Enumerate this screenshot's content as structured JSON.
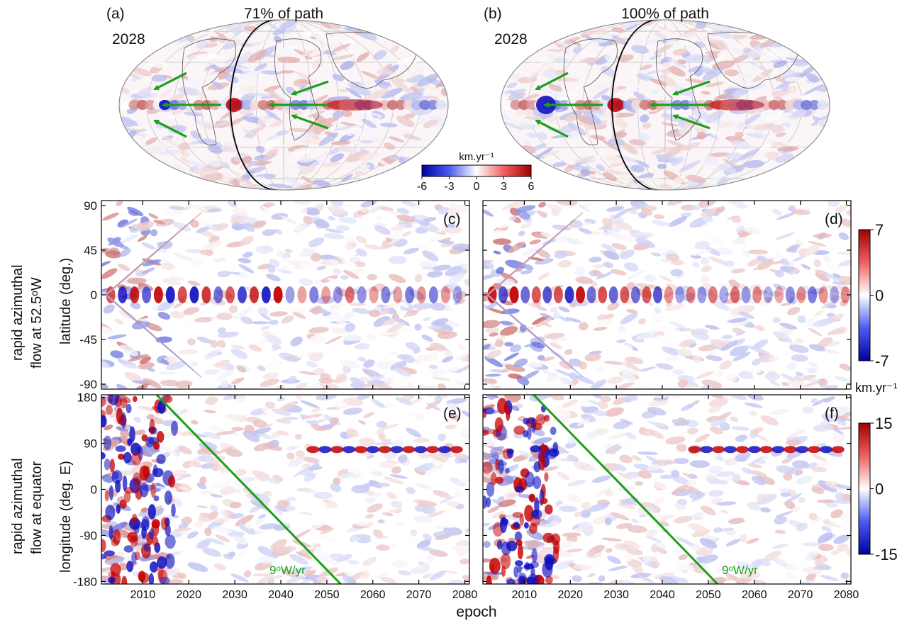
{
  "figure": {
    "xlabel": "epoch",
    "colorbar_units": "km.yr⁻¹",
    "maps": [
      {
        "panel": "(a)",
        "title": "71% of path",
        "year": "2028"
      },
      {
        "panel": "(b)",
        "title": "100% of path",
        "year": "2028"
      }
    ],
    "map_colorbar": {
      "units": "km.yr⁻¹",
      "ticks": [
        "-6",
        "-3",
        "0",
        "3",
        "6"
      ]
    },
    "row_labels": {
      "top": [
        "rapid azimuthal",
        "flow at 52.5ᵒW"
      ],
      "bottom": [
        "rapid azimuthal",
        "flow at equator"
      ]
    },
    "annotations": {
      "drift_left": "9ᵒW/yr",
      "drift_right": "9ᵒW/yr"
    },
    "colors": {
      "positive": "#c40000",
      "negative": "#1010c0",
      "arrow": "#1aa01a"
    }
  },
  "chart_data": [
    {
      "type": "heatmap",
      "panel": "(c)",
      "xlabel": "",
      "ylabel": "latitude (deg.)",
      "xlim": [
        2001,
        2081
      ],
      "ylim": [
        -95,
        95
      ],
      "xticks": [
        "2010",
        "2020",
        "2030",
        "2040",
        "2050",
        "2060",
        "2070",
        "2080"
      ],
      "yticks": [
        "90",
        "45",
        "0",
        "-45",
        "-90"
      ],
      "colorbar": {
        "range": [
          -7,
          7
        ],
        "ticks": [
          "7",
          "0",
          "-7"
        ],
        "units": "km.yr⁻¹"
      },
      "equatorial_signal": "alternating positive/negative blobs along latitude 0, strongest 2005-2040"
    },
    {
      "type": "heatmap",
      "panel": "(d)",
      "xlabel": "",
      "ylabel": "latitude (deg.)",
      "xlim": [
        2001,
        2081
      ],
      "ylim": [
        -95,
        95
      ],
      "xticks": [
        "2010",
        "2020",
        "2030",
        "2040",
        "2050",
        "2060",
        "2070",
        "2080"
      ],
      "yticks": [
        "90",
        "45",
        "0",
        "-45",
        "-90"
      ],
      "colorbar": {
        "range": [
          -7,
          7
        ],
        "ticks": [
          "7",
          "0",
          "-7"
        ],
        "units": "km.yr⁻¹"
      }
    },
    {
      "type": "heatmap",
      "panel": "(e)",
      "xlabel": "epoch",
      "ylabel": "longitude (deg. E)",
      "xlim": [
        2001,
        2081
      ],
      "ylim": [
        -185,
        185
      ],
      "xticks": [
        "2010",
        "2020",
        "2030",
        "2040",
        "2050",
        "2060",
        "2070",
        "2080"
      ],
      "yticks": [
        "180",
        "90",
        "0",
        "-90",
        "-180"
      ],
      "colorbar": {
        "range": [
          -15,
          15
        ],
        "ticks": [
          "15",
          "0",
          "-15"
        ],
        "units": "km.yr⁻¹"
      },
      "drift_line": {
        "label": "9ᵒW/yr",
        "from": [
          2013,
          185
        ],
        "to": [
          2053,
          -185
        ]
      }
    },
    {
      "type": "heatmap",
      "panel": "(f)",
      "xlabel": "epoch",
      "ylabel": "longitude (deg. E)",
      "xlim": [
        2001,
        2081
      ],
      "ylim": [
        -185,
        185
      ],
      "xticks": [
        "2010",
        "2020",
        "2030",
        "2040",
        "2050",
        "2060",
        "2070",
        "2080"
      ],
      "yticks": [
        "180",
        "90",
        "0",
        "-90",
        "-180"
      ],
      "colorbar": {
        "range": [
          -15,
          15
        ],
        "ticks": [
          "15",
          "0",
          "-15"
        ],
        "units": "km.yr⁻¹"
      },
      "drift_line": {
        "label": "9ᵒW/yr",
        "from": [
          2012,
          185
        ],
        "to": [
          2052,
          -185
        ]
      }
    }
  ]
}
